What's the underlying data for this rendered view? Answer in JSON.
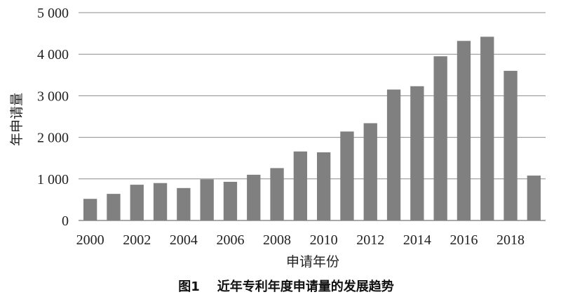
{
  "chart_data": {
    "type": "bar",
    "categories": [
      "2000",
      "2001",
      "2002",
      "2003",
      "2004",
      "2005",
      "2006",
      "2007",
      "2008",
      "2009",
      "2010",
      "2011",
      "2012",
      "2013",
      "2014",
      "2015",
      "2016",
      "2017",
      "2018",
      "2019"
    ],
    "x_tick_labels": [
      "2000",
      "2002",
      "2004",
      "2006",
      "2008",
      "2010",
      "2012",
      "2014",
      "2016",
      "2018"
    ],
    "values": [
      520,
      640,
      860,
      900,
      780,
      990,
      930,
      1100,
      1260,
      1660,
      1640,
      2140,
      2340,
      3150,
      3230,
      3950,
      4320,
      4420,
      3600,
      1080
    ],
    "ylim": [
      0,
      5000
    ],
    "y_ticks": [
      0,
      1000,
      2000,
      3000,
      4000,
      5000
    ],
    "y_tick_labels": [
      "0",
      "1 000",
      "2 000",
      "3 000",
      "4 000",
      "5 000"
    ],
    "xlabel": "申请年份",
    "ylabel": "年申请量",
    "caption": "图1    近年专利年度申请量的发展趋势",
    "grid": true,
    "legend": "none",
    "bar_color": "#808080",
    "grid_color": "#8c8c8c"
  }
}
